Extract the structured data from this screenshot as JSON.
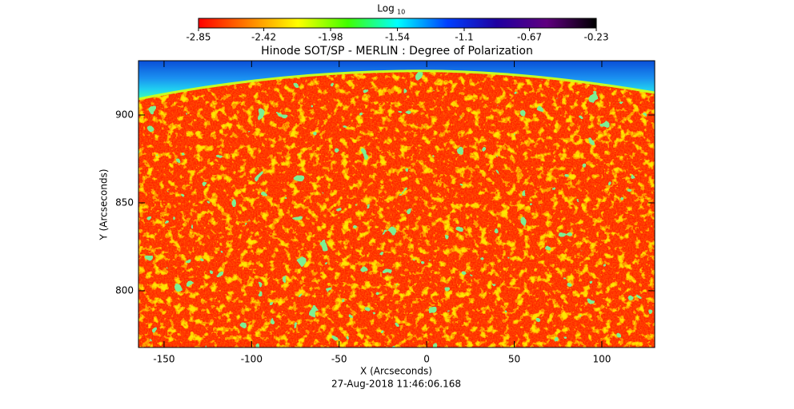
{
  "chart_data": {
    "type": "image",
    "title": "Hinode SOT/SP - MERLIN : Degree of Polarization",
    "xlabel": "X (Arcseconds)",
    "ylabel": "Y (Arcseconds)",
    "footer": "27-Aug-2018 11:46:06.168",
    "xlim": [
      -164.6,
      130.2
    ],
    "xticks": [
      -150,
      -100,
      -50,
      0,
      50,
      100
    ],
    "ylim": [
      767.7,
      930.9
    ],
    "yticks": [
      800,
      850,
      900
    ],
    "colorbar": {
      "label": "Log",
      "label_sub": "10",
      "clim": [
        -2.85,
        -0.23
      ],
      "ticks": [
        -2.85,
        -2.42,
        -1.98,
        -1.54,
        -1.1,
        -0.67,
        -0.23
      ],
      "colormap": [
        "#ff0000",
        "#ff8000",
        "#ffff00",
        "#40ff00",
        "#00ffff",
        "#0040ff",
        "#2000a0",
        "#600080",
        "#000000"
      ]
    }
  }
}
